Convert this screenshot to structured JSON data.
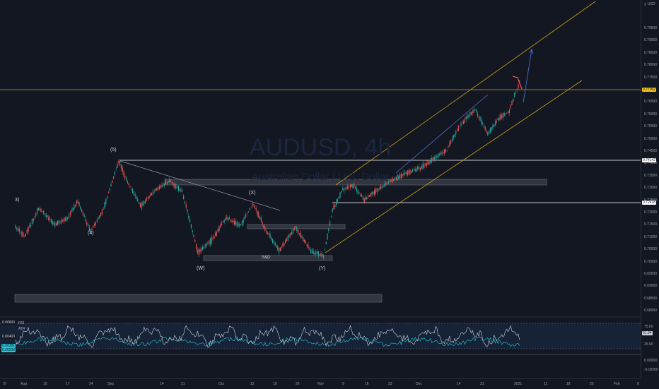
{
  "symbol": {
    "ticker": "AUDUSD",
    "interval": "4h",
    "title": "AUDUSD, 4h",
    "description": "Australian Dollar / U.S. Dollar"
  },
  "currency": "USD",
  "price_axis": {
    "ticks": [
      "0.79500",
      "0.79000",
      "0.78500",
      "0.78000",
      "0.77500",
      "0.76500",
      "0.76000",
      "0.75500",
      "0.75000",
      "0.74500",
      "0.74000",
      "0.73500",
      "0.73000",
      "0.72500",
      "0.72000",
      "0.71500",
      "0.71000",
      "0.70500",
      "0.70000",
      "0.69500",
      "0.69000",
      "0.68500",
      "0.68000"
    ],
    "current_price": "0.77002",
    "level_high": "0.74142",
    "level_low": "0.72418"
  },
  "indicator_axis": {
    "ticks": [
      "75.00",
      "25.00",
      "0.00000",
      "-0.00200"
    ],
    "rsi_value": "61.94",
    "atr_high": "0.00600",
    "atr_mid": "0.00400",
    "atr_low": "0.00200",
    "atr_current": "0.00381"
  },
  "time_axis": {
    "labels": [
      "Aug",
      "10",
      "17",
      "24",
      "Sep",
      "14",
      "21",
      "Oct",
      "12",
      "19",
      "26",
      "Nov",
      "9",
      "16",
      "23",
      "Dec",
      "14",
      "21",
      "2021",
      "11",
      "18",
      "25",
      "Feb",
      "8"
    ]
  },
  "wave_labels": {
    "w3": "3)",
    "w4": "(4)",
    "w5": "(5)",
    "ww": "(W)",
    "wx": "(X)",
    "wy": "(Y)",
    "sd": "S&D"
  },
  "indicators": {
    "rsi": "RSI",
    "atr": "ATR"
  },
  "icons": {
    "settings": "gear-icon",
    "currency_menu": "currency-dropdown-icon"
  },
  "colors": {
    "background": "#131722",
    "bull": "#26a69a",
    "bear": "#ef5350",
    "channel": "#d4a017",
    "current_price": "#f5c518",
    "rsi_line": "#d1d4dc",
    "atr_line": "#26c6da",
    "zone": "#4a4e5a"
  }
}
